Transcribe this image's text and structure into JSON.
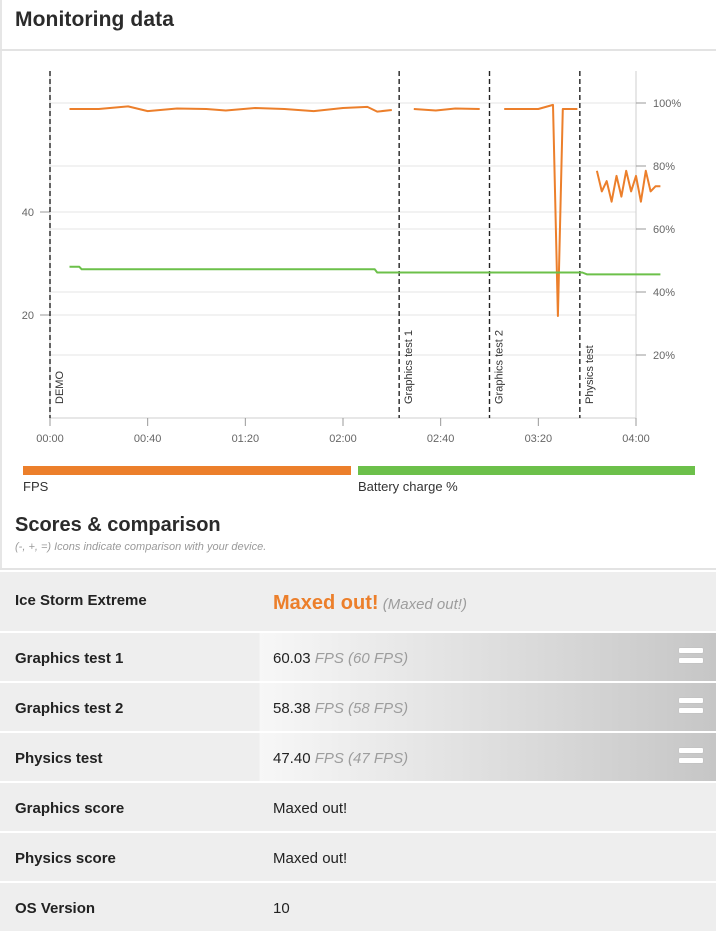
{
  "header": {
    "title": "Monitoring data"
  },
  "chart_data": {
    "type": "line",
    "x_axis": {
      "ticks": [
        "00:00",
        "00:40",
        "01:20",
        "02:00",
        "02:40",
        "03:20",
        "04:00"
      ],
      "range_seconds": [
        0,
        240
      ]
    },
    "y_left": {
      "ticks": [
        "40",
        "20"
      ]
    },
    "y_right": {
      "ticks": [
        "100%",
        "80%",
        "60%",
        "40%",
        "20%"
      ],
      "range": [
        0,
        100
      ]
    },
    "markers": [
      {
        "label": "DEMO",
        "t": 0
      },
      {
        "label": "Graphics test 1",
        "t": 143
      },
      {
        "label": "Graphics test 2",
        "t": 180
      },
      {
        "label": "Physics test",
        "t": 217
      }
    ],
    "series": [
      {
        "name": "FPS",
        "color": "#ec7f2b",
        "segments": [
          [
            [
              8,
              60
            ],
            [
              20,
              60
            ],
            [
              32,
              60.5
            ],
            [
              40,
              59.6
            ],
            [
              52,
              60.1
            ],
            [
              64,
              60
            ],
            [
              72,
              59.7
            ],
            [
              84,
              60.2
            ],
            [
              96,
              60
            ],
            [
              108,
              59.6
            ],
            [
              120,
              60.2
            ],
            [
              130,
              60.4
            ],
            [
              134,
              59.5
            ],
            [
              140,
              59.8
            ]
          ],
          [
            [
              149,
              60
            ],
            [
              158,
              59.7
            ],
            [
              166,
              60.1
            ],
            [
              176,
              60
            ]
          ],
          [
            [
              186,
              60
            ],
            [
              200,
              60
            ],
            [
              206,
              60.8
            ],
            [
              208,
              19.8
            ],
            [
              210,
              60
            ],
            [
              216,
              60
            ]
          ]
        ]
      },
      {
        "name": "FPS (Physics test)",
        "color": "#ec7f2b",
        "segments": [
          [
            [
              224,
              48
            ],
            [
              226,
              44
            ],
            [
              228,
              46
            ],
            [
              230,
              42
            ],
            [
              232,
              47
            ],
            [
              234,
              43
            ],
            [
              236,
              48
            ],
            [
              238,
              44
            ],
            [
              240,
              47
            ],
            [
              242,
              42
            ],
            [
              244,
              48
            ],
            [
              246,
              44
            ],
            [
              248,
              45
            ],
            [
              250,
              45
            ]
          ]
        ]
      },
      {
        "name": "Battery charge %",
        "color": "#6cc04a",
        "segments": [
          [
            [
              8,
              48
            ],
            [
              12,
              48
            ],
            [
              13,
              47.2
            ],
            [
              133,
              47.2
            ],
            [
              134,
              46.2
            ],
            [
              218,
              46.2
            ],
            [
              220,
              45.6
            ],
            [
              250,
              45.6
            ]
          ]
        ]
      }
    ]
  },
  "legend": [
    {
      "label": "FPS",
      "color": "#ec7f2b"
    },
    {
      "label": "Battery charge %",
      "color": "#6cc04a"
    }
  ],
  "scores": {
    "title": "Scores & comparison",
    "note": "(-, +, =) Icons indicate comparison with your device.",
    "rows": [
      {
        "label": "Ice Storm Extreme",
        "value": "Maxed out!",
        "sub": "(Maxed out!)"
      },
      {
        "label": "Graphics test 1",
        "value": "60.03",
        "sub": "FPS (60 FPS)",
        "icon": "equals-icon"
      },
      {
        "label": "Graphics test 2",
        "value": "58.38",
        "sub": "FPS (58 FPS)",
        "icon": "equals-icon"
      },
      {
        "label": "Physics test",
        "value": "47.40",
        "sub": "FPS (47 FPS)",
        "icon": "equals-icon"
      },
      {
        "label": "Graphics score",
        "value": "Maxed out!"
      },
      {
        "label": "Physics score",
        "value": "Maxed out!"
      },
      {
        "label": "OS Version",
        "value": "10"
      }
    ]
  }
}
